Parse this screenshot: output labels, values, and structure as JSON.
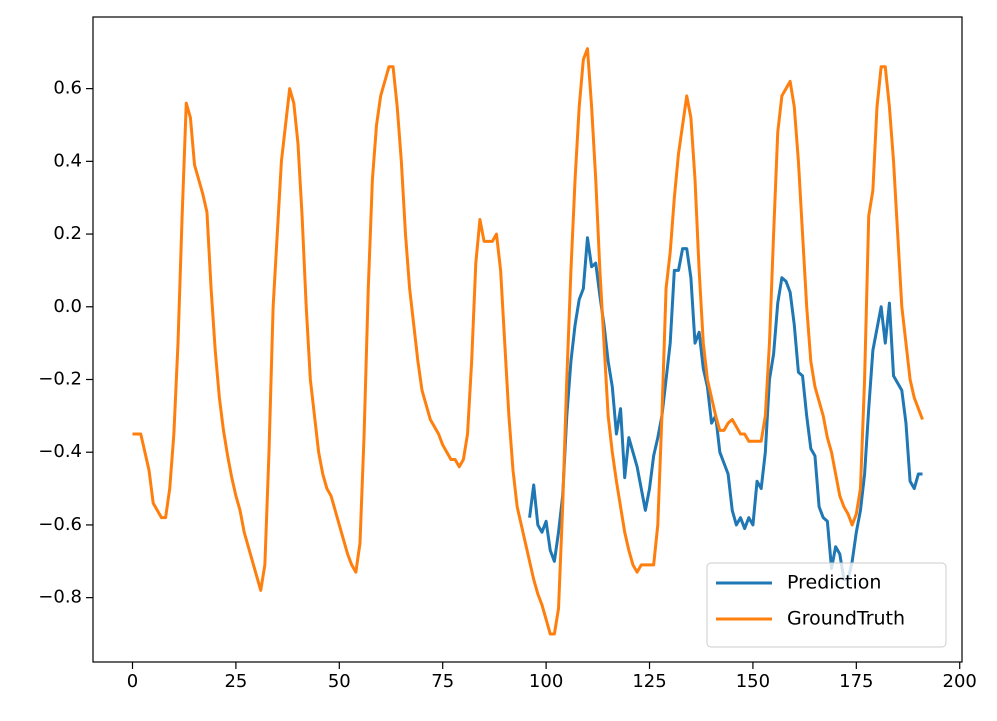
{
  "chart_data": {
    "type": "line",
    "x": [
      0,
      1,
      2,
      3,
      4,
      5,
      6,
      7,
      8,
      9,
      10,
      11,
      12,
      13,
      14,
      15,
      16,
      17,
      18,
      19,
      20,
      21,
      22,
      23,
      24,
      25,
      26,
      27,
      28,
      29,
      30,
      31,
      32,
      33,
      34,
      35,
      36,
      37,
      38,
      39,
      40,
      41,
      42,
      43,
      44,
      45,
      46,
      47,
      48,
      49,
      50,
      51,
      52,
      53,
      54,
      55,
      56,
      57,
      58,
      59,
      60,
      61,
      62,
      63,
      64,
      65,
      66,
      67,
      68,
      69,
      70,
      71,
      72,
      73,
      74,
      75,
      76,
      77,
      78,
      79,
      80,
      81,
      82,
      83,
      84,
      85,
      86,
      87,
      88,
      89,
      90,
      91,
      92,
      93,
      94,
      95,
      96,
      97,
      98,
      99,
      100,
      101,
      102,
      103,
      104,
      105,
      106,
      107,
      108,
      109,
      110,
      111,
      112,
      113,
      114,
      115,
      116,
      117,
      118,
      119,
      120,
      121,
      122,
      123,
      124,
      125,
      126,
      127,
      128,
      129,
      130,
      131,
      132,
      133,
      134,
      135,
      136,
      137,
      138,
      139,
      140,
      141,
      142,
      143,
      144,
      145,
      146,
      147,
      148,
      149,
      150,
      151,
      152,
      153,
      154,
      155,
      156,
      157,
      158,
      159,
      160,
      161,
      162,
      163,
      164,
      165,
      166,
      167,
      168,
      169,
      170,
      171,
      172,
      173,
      174,
      175,
      176,
      177,
      178,
      179,
      180,
      181,
      182,
      183,
      184,
      185,
      186,
      187,
      188,
      189,
      190,
      191
    ],
    "series": [
      {
        "name": "Prediction",
        "color": "#1f77b4",
        "values": [
          null,
          null,
          null,
          null,
          null,
          null,
          null,
          null,
          null,
          null,
          null,
          null,
          null,
          null,
          null,
          null,
          null,
          null,
          null,
          null,
          null,
          null,
          null,
          null,
          null,
          null,
          null,
          null,
          null,
          null,
          null,
          null,
          null,
          null,
          null,
          null,
          null,
          null,
          null,
          null,
          null,
          null,
          null,
          null,
          null,
          null,
          null,
          null,
          null,
          null,
          null,
          null,
          null,
          null,
          null,
          null,
          null,
          null,
          null,
          null,
          null,
          null,
          null,
          null,
          null,
          null,
          null,
          null,
          null,
          null,
          null,
          null,
          null,
          null,
          null,
          null,
          null,
          null,
          null,
          null,
          null,
          null,
          null,
          null,
          null,
          null,
          null,
          null,
          null,
          null,
          null,
          null,
          null,
          null,
          null,
          null,
          -0.58,
          -0.49,
          -0.6,
          -0.62,
          -0.59,
          -0.67,
          -0.7,
          -0.62,
          -0.52,
          -0.3,
          -0.15,
          -0.05,
          0.02,
          0.05,
          0.19,
          0.11,
          0.12,
          0.03,
          -0.05,
          -0.15,
          -0.22,
          -0.35,
          -0.28,
          -0.47,
          -0.36,
          -0.4,
          -0.44,
          -0.5,
          -0.56,
          -0.5,
          -0.41,
          -0.36,
          -0.3,
          -0.2,
          -0.1,
          0.1,
          0.1,
          0.16,
          0.16,
          0.08,
          -0.1,
          -0.07,
          -0.17,
          -0.22,
          -0.32,
          -0.3,
          -0.4,
          -0.43,
          -0.46,
          -0.56,
          -0.6,
          -0.58,
          -0.61,
          -0.58,
          -0.6,
          -0.48,
          -0.5,
          -0.4,
          -0.2,
          -0.13,
          0.01,
          0.08,
          0.07,
          0.04,
          -0.05,
          -0.18,
          -0.19,
          -0.3,
          -0.39,
          -0.41,
          -0.55,
          -0.58,
          -0.59,
          -0.72,
          -0.66,
          -0.68,
          -0.75,
          -0.75,
          -0.7,
          -0.62,
          -0.56,
          -0.46,
          -0.28,
          -0.12,
          -0.06,
          0.0,
          -0.1,
          0.01,
          -0.19,
          -0.21,
          -0.23,
          -0.32,
          -0.48,
          -0.5,
          -0.46,
          -0.46
        ]
      },
      {
        "name": "GroundTruth",
        "color": "#ff7f0e",
        "values": [
          -0.35,
          -0.35,
          -0.35,
          -0.4,
          -0.45,
          -0.54,
          -0.56,
          -0.58,
          -0.58,
          -0.5,
          -0.35,
          -0.1,
          0.25,
          0.56,
          0.52,
          0.39,
          0.35,
          0.31,
          0.26,
          0.05,
          -0.12,
          -0.25,
          -0.34,
          -0.41,
          -0.47,
          -0.52,
          -0.56,
          -0.62,
          -0.66,
          -0.7,
          -0.74,
          -0.78,
          -0.71,
          -0.4,
          0.0,
          0.2,
          0.4,
          0.5,
          0.6,
          0.56,
          0.45,
          0.25,
          0.0,
          -0.2,
          -0.3,
          -0.4,
          -0.46,
          -0.5,
          -0.52,
          -0.56,
          -0.6,
          -0.64,
          -0.68,
          -0.71,
          -0.73,
          -0.65,
          -0.35,
          0.05,
          0.35,
          0.5,
          0.58,
          0.62,
          0.66,
          0.66,
          0.55,
          0.4,
          0.2,
          0.05,
          -0.05,
          -0.15,
          -0.23,
          -0.27,
          -0.31,
          -0.33,
          -0.35,
          -0.38,
          -0.4,
          -0.42,
          -0.42,
          -0.44,
          -0.42,
          -0.35,
          -0.15,
          0.12,
          0.24,
          0.18,
          0.18,
          0.18,
          0.2,
          0.1,
          -0.1,
          -0.3,
          -0.45,
          -0.55,
          -0.6,
          -0.65,
          -0.7,
          -0.75,
          -0.79,
          -0.82,
          -0.86,
          -0.9,
          -0.9,
          -0.83,
          -0.55,
          -0.2,
          0.1,
          0.35,
          0.55,
          0.68,
          0.71,
          0.55,
          0.35,
          0.1,
          -0.1,
          -0.3,
          -0.4,
          -0.48,
          -0.55,
          -0.62,
          -0.67,
          -0.71,
          -0.73,
          -0.71,
          -0.71,
          -0.71,
          -0.71,
          -0.6,
          -0.3,
          0.05,
          0.15,
          0.3,
          0.42,
          0.5,
          0.58,
          0.52,
          0.35,
          0.1,
          -0.1,
          -0.2,
          -0.25,
          -0.3,
          -0.34,
          -0.34,
          -0.32,
          -0.31,
          -0.33,
          -0.35,
          -0.35,
          -0.37,
          -0.37,
          -0.37,
          -0.37,
          -0.3,
          -0.1,
          0.2,
          0.48,
          0.58,
          0.6,
          0.62,
          0.55,
          0.4,
          0.2,
          0.0,
          -0.15,
          -0.22,
          -0.26,
          -0.3,
          -0.36,
          -0.4,
          -0.46,
          -0.52,
          -0.55,
          -0.57,
          -0.6,
          -0.57,
          -0.5,
          -0.2,
          0.25,
          0.32,
          0.55,
          0.66,
          0.66,
          0.55,
          0.4,
          0.2,
          0.0,
          -0.1,
          -0.2,
          -0.25,
          -0.28,
          -0.31
        ]
      }
    ],
    "xlim": [
      -9.55,
      200.55
    ],
    "xticks": [
      0,
      25,
      50,
      75,
      100,
      125,
      150,
      175,
      200
    ],
    "ylim": [
      -0.977,
      0.797
    ],
    "yticks": [
      {
        "value": -0.8,
        "label": "−0.8"
      },
      {
        "value": -0.6,
        "label": "−0.6"
      },
      {
        "value": -0.4,
        "label": "−0.4"
      },
      {
        "value": -0.2,
        "label": "−0.2"
      },
      {
        "value": 0.0,
        "label": "0.0"
      },
      {
        "value": 0.2,
        "label": "0.2"
      },
      {
        "value": 0.4,
        "label": "0.4"
      },
      {
        "value": 0.6,
        "label": "0.6"
      }
    ],
    "legend": "lower right",
    "grid": false
  }
}
